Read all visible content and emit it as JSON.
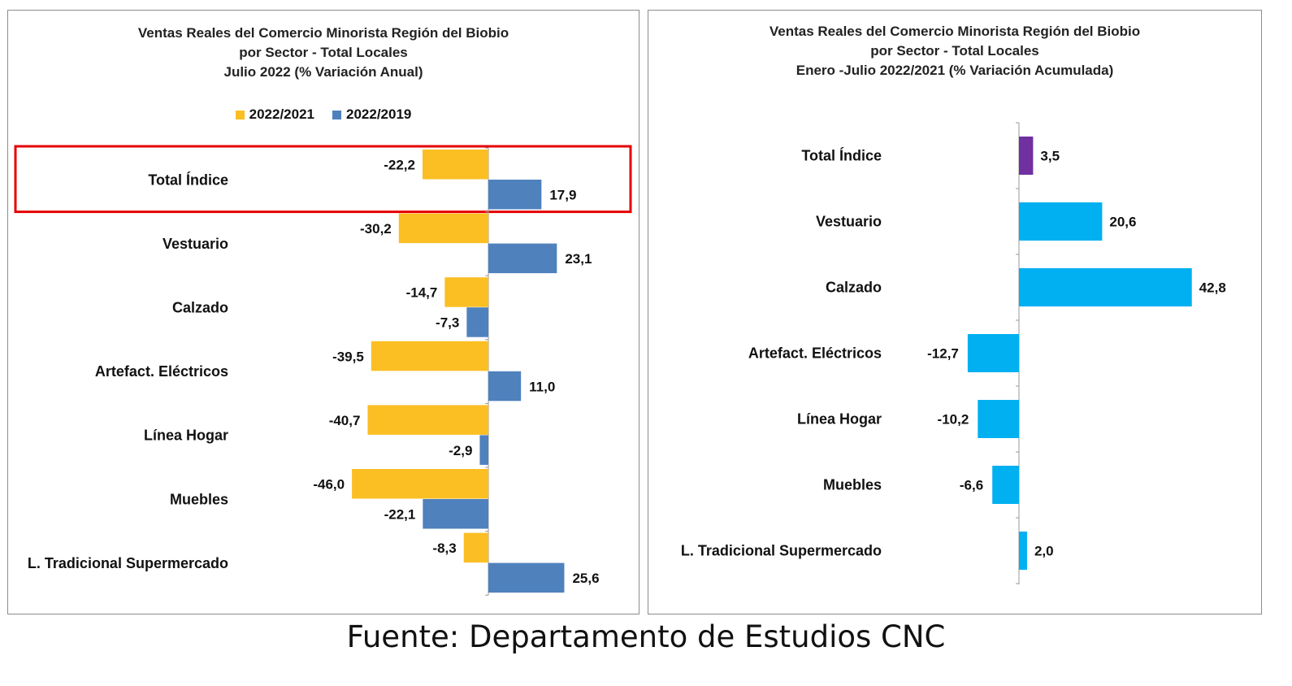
{
  "footer": "Fuente: Departamento de Estudios CNC",
  "colors": {
    "series_2022_2021": "#FBBF24",
    "series_2022_2019": "#4F81BD",
    "total_right": "#7030A0",
    "sector_right": "#00B0F0",
    "highlight": "#E50000"
  },
  "chart_data": [
    {
      "type": "bar",
      "orientation": "horizontal",
      "title_lines": [
        "Ventas Reales del Comercio Minorista  Región del Biobio",
        "por Sector - Total Locales",
        "Julio 2022  (% Variación Anual)"
      ],
      "legend": [
        "2022/2021",
        "2022/2019"
      ],
      "legend_position": "top",
      "categories": [
        "Total Índice",
        "Vestuario",
        "Calzado",
        "Artefact. Eléctricos",
        "Línea Hogar",
        "Muebles",
        "L. Tradicional Supermercado"
      ],
      "series": [
        {
          "name": "2022/2021",
          "values": [
            -22.2,
            -30.2,
            -14.7,
            -39.5,
            -40.7,
            -46.0,
            -8.3
          ],
          "labels": [
            "-22,2",
            "-30,2",
            "-14,7",
            "-39,5",
            "-40,7",
            "-46,0",
            "-8,3"
          ]
        },
        {
          "name": "2022/2019",
          "values": [
            17.9,
            23.1,
            -7.3,
            11.0,
            -2.9,
            -22.1,
            25.6
          ],
          "labels": [
            "17,9",
            "23,1",
            "-7,3",
            "11,0",
            "-2,9",
            "-22,1",
            "25,6"
          ]
        }
      ],
      "highlighted_category": "Total Índice",
      "grid": false
    },
    {
      "type": "bar",
      "orientation": "horizontal",
      "title_lines": [
        "Ventas Reales del Comercio Minorista Región del Biobio",
        "por Sector - Total Locales",
        "Enero -Julio 2022/2021  (% Variación Acumulada)"
      ],
      "categories": [
        "Total Índice",
        "Vestuario",
        "Calzado",
        "Artefact. Eléctricos",
        "Línea Hogar",
        "Muebles",
        "L. Tradicional Supermercado"
      ],
      "series": [
        {
          "values": [
            3.5,
            20.6,
            42.8,
            -12.7,
            -10.2,
            -6.6,
            2.0
          ],
          "labels": [
            "3,5",
            "20,6",
            "42,8",
            "-12,7",
            "-10,2",
            "-6,6",
            "2,0"
          ]
        }
      ],
      "grid": false
    }
  ]
}
